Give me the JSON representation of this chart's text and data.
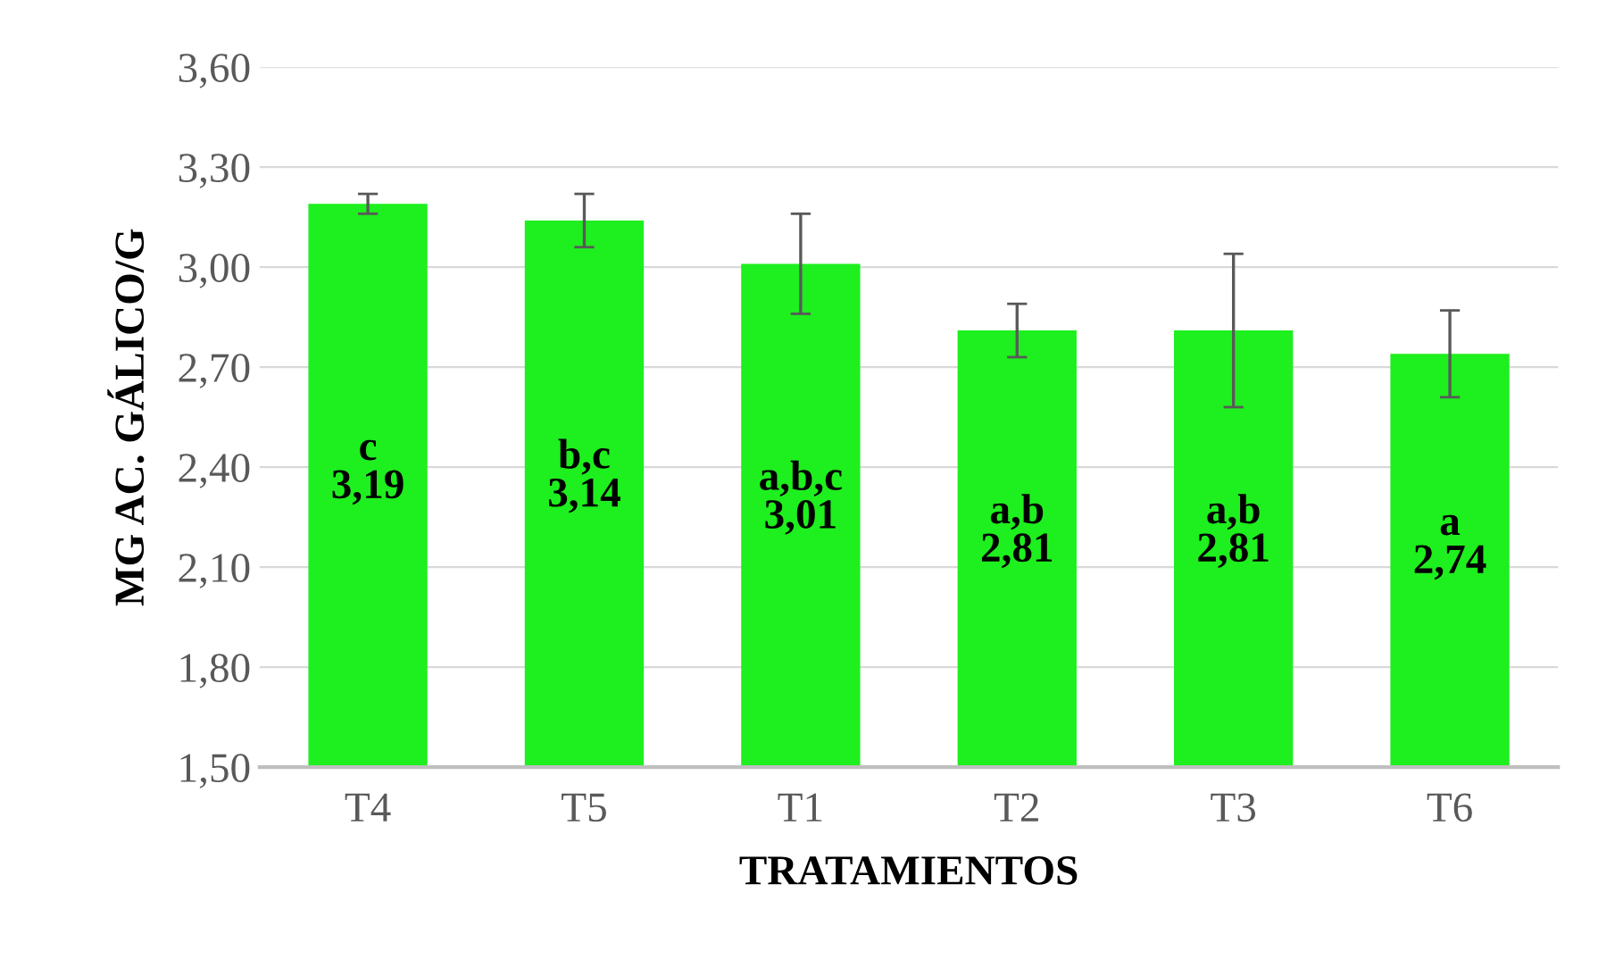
{
  "chart_data": {
    "type": "bar",
    "xlabel": "TRATAMIENTOS",
    "ylabel": "MG AC. GÁLICO/G",
    "categories": [
      "T4",
      "T5",
      "T1",
      "T2",
      "T3",
      "T6"
    ],
    "values": [
      3.19,
      3.14,
      3.01,
      2.81,
      2.81,
      2.74
    ],
    "errors": [
      0.03,
      0.08,
      0.15,
      0.08,
      0.23,
      0.13
    ],
    "value_labels": [
      "c\n3,19",
      "b,c\n3,14",
      "a,b,c\n3,01",
      "a,b\n2,81",
      "a,b\n2,81",
      "a\n2,74"
    ],
    "color": "#1eef1e",
    "ylim": [
      1.5,
      3.6
    ],
    "yticks": [
      {
        "value": 1.5,
        "label": "1,50"
      },
      {
        "value": 1.8,
        "label": "1,80"
      },
      {
        "value": 2.1,
        "label": "2,10"
      },
      {
        "value": 2.4,
        "label": "2,40"
      },
      {
        "value": 2.7,
        "label": "2,70"
      },
      {
        "value": 3.0,
        "label": "3,00"
      },
      {
        "value": 3.3,
        "label": "3,30"
      },
      {
        "value": 3.6,
        "label": "3,60"
      }
    ],
    "grid": "y"
  }
}
